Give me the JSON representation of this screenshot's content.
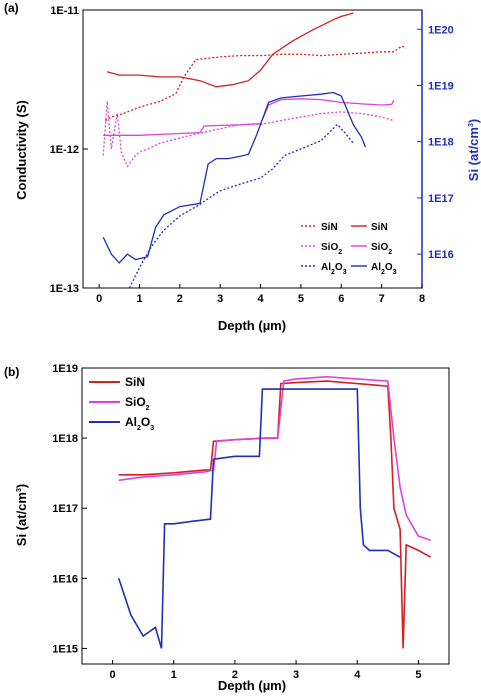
{
  "chart_data": [
    {
      "panel_label": "(a)",
      "type": "line",
      "xlabel": "Depth (µm)",
      "ylabel": "Conductivity (S)",
      "ylabel_right": "Si (at/cm³)",
      "xlim": [
        -0.4,
        8
      ],
      "ylim": [
        1e-13,
        1e-11
      ],
      "yscale": "log",
      "ylim_right": [
        2500000000000000.0,
        2.2e+20
      ],
      "yscale_right": "log",
      "x_ticks": [
        "0",
        "1",
        "2",
        "3",
        "4",
        "5",
        "6",
        "7",
        "8"
      ],
      "y_ticks": [
        "1E-13",
        "1E-12",
        "1E-11"
      ],
      "y_ticks_right": [
        "1E16",
        "1E17",
        "1E18",
        "1E19",
        "1E20"
      ],
      "legend_position": "bottom-right",
      "legend": [
        {
          "text": "SiN",
          "style": "dotted",
          "color": "#d42020"
        },
        {
          "text": "SiN",
          "style": "solid",
          "color": "#d42020"
        },
        {
          "text": "SiO₂",
          "style": "dotted",
          "color": "#e040e0"
        },
        {
          "text": "SiO₂",
          "style": "solid",
          "color": "#e040e0"
        },
        {
          "text": "Al₂O₃",
          "style": "dotted",
          "color": "#1f2fb8"
        },
        {
          "text": "Al₂O₃",
          "style": "solid",
          "color": "#1f2fb8"
        }
      ],
      "series": [
        {
          "style": "dotted",
          "color": "#d42020",
          "axis": "left",
          "x": [
            0.15,
            0.3,
            0.6,
            1.0,
            1.5,
            1.9,
            2.1,
            2.4,
            3.0,
            3.5,
            4.0,
            4.5,
            5.0,
            5.5,
            6.0,
            6.5,
            7.0,
            7.3,
            7.5,
            7.6
          ],
          "y": [
            1.6e-12,
            1.7e-12,
            1.8e-12,
            2e-12,
            2.2e-12,
            2.5e-12,
            3.3e-12,
            4.4e-12,
            4.6e-12,
            4.7e-12,
            4.7e-12,
            4.8e-12,
            4.8e-12,
            4.7e-12,
            4.8e-12,
            4.9e-12,
            5e-12,
            5e-12,
            5.5e-12,
            5.3e-12
          ]
        },
        {
          "style": "solid",
          "color": "#d42020",
          "axis": "left",
          "x": [
            0.2,
            0.5,
            1.0,
            1.5,
            2.0,
            2.5,
            2.9,
            3.3,
            3.7,
            4.0,
            4.3,
            4.8,
            5.3,
            5.8,
            6.0,
            6.3
          ],
          "y": [
            3.6e-12,
            3.4e-12,
            3.4e-12,
            3.3e-12,
            3.3e-12,
            3.1e-12,
            2.8e-12,
            2.9e-12,
            3.1e-12,
            3.7e-12,
            4.8e-12,
            6e-12,
            7.2e-12,
            8.5e-12,
            9e-12,
            9.5e-12
          ]
        },
        {
          "style": "dotted",
          "color": "#e040e0",
          "axis": "left",
          "x": [
            0.1,
            0.2,
            0.3,
            0.45,
            0.55,
            0.7,
            0.9,
            1.0,
            1.2,
            1.5,
            2.0,
            2.5,
            3.0,
            3.5,
            4.0,
            4.5,
            5.0,
            5.5,
            6.0,
            6.5,
            7.0,
            7.3
          ],
          "y": [
            9e-13,
            2.2e-12,
            1e-12,
            1.8e-12,
            9.5e-13,
            7.5e-13,
            9e-13,
            9.5e-13,
            1e-12,
            1.1e-12,
            1.2e-12,
            1.3e-12,
            1.4e-12,
            1.5e-12,
            1.5e-12,
            1.6e-12,
            1.7e-12,
            1.8e-12,
            1.85e-12,
            1.8e-12,
            1.7e-12,
            1.6e-12
          ]
        },
        {
          "style": "solid",
          "color": "#e040e0",
          "axis": "right",
          "x": [
            0.1,
            0.5,
            1.0,
            1.5,
            2.0,
            2.5,
            2.6,
            3.0,
            3.5,
            4.0,
            4.2,
            4.5,
            5.0,
            5.5,
            6.0,
            6.5,
            7.0,
            7.25,
            7.3
          ],
          "y": [
            1.3e+18,
            1.3e+18,
            1.3e+18,
            1.35e+18,
            1.4e+18,
            1.45e+18,
            1.9e+18,
            1.95e+18,
            2e+18,
            2.1e+18,
            4.5e+18,
            5.6e+18,
            5.8e+18,
            5.6e+18,
            5e+18,
            4.7e+18,
            4.5e+18,
            4.6e+18,
            5.5e+18
          ]
        },
        {
          "style": "dotted",
          "color": "#1f2fb8",
          "axis": "left",
          "x": [
            0.75,
            1.0,
            1.3,
            1.6,
            2.0,
            2.5,
            2.8,
            3.0,
            3.5,
            4.0,
            4.3,
            4.6,
            5.0,
            5.5,
            5.9,
            6.1,
            6.3
          ],
          "y": [
            1e-13,
            1.4e-13,
            2e-13,
            2.6e-13,
            3.3e-13,
            4e-13,
            4.6e-13,
            5e-13,
            5.6e-13,
            6.2e-13,
            7.2e-13,
            9e-13,
            1e-12,
            1.15e-12,
            1.5e-12,
            1.3e-12,
            1.1e-12
          ]
        },
        {
          "style": "solid",
          "color": "#1f2fb8",
          "axis": "right",
          "x": [
            0.1,
            0.3,
            0.5,
            0.7,
            0.9,
            1.2,
            1.4,
            1.6,
            2.0,
            2.5,
            2.7,
            2.9,
            3.2,
            3.5,
            3.7,
            3.9,
            4.2,
            4.5,
            5.0,
            5.5,
            5.8,
            6.0,
            6.3,
            6.5,
            6.6
          ],
          "y": [
            2e+16,
            1e+16,
            7000000000000000.0,
            1e+16,
            8000000000000000.0,
            9000000000000000.0,
            3e+16,
            5e+16,
            7e+16,
            8e+16,
            4e+17,
            5e+17,
            5e+17,
            5.5e+17,
            6e+17,
            1.3e+18,
            5e+18,
            6e+18,
            6.5e+18,
            7e+18,
            7.5e+18,
            6.5e+18,
            2e+18,
            1.2e+18,
            8e+17
          ]
        }
      ]
    },
    {
      "panel_label": "(b)",
      "type": "line",
      "xlabel": "Depth (µm)",
      "ylabel": "Si (at/cm³)",
      "xlim": [
        -0.5,
        5.5
      ],
      "ylim": [
        600000000000000.0,
        1e+19
      ],
      "yscale": "log",
      "x_ticks": [
        "0",
        "1",
        "2",
        "3",
        "4",
        "5"
      ],
      "y_ticks": [
        "1E15",
        "1E16",
        "1E17",
        "1E18",
        "1E19"
      ],
      "legend_position": "top-left",
      "legend": [
        {
          "text": "SiN",
          "color": "#d42020"
        },
        {
          "text": "SiO₂",
          "color": "#e040e0"
        },
        {
          "text": "Al₂O₃",
          "color": "#1f2fb8"
        }
      ],
      "series": [
        {
          "name": "SiN",
          "color": "#d42020",
          "x": [
            0.1,
            0.5,
            1.0,
            1.5,
            1.6,
            1.65,
            2.0,
            2.5,
            2.7,
            2.75,
            3.0,
            3.5,
            4.0,
            4.5,
            4.55,
            4.6,
            4.7,
            4.75,
            4.8,
            5.0,
            5.2
          ],
          "y": [
            3e+17,
            3e+17,
            3.2e+17,
            3.5e+17,
            3.5e+17,
            9e+17,
            9.5e+17,
            1e+18,
            1e+18,
            6e+18,
            6.2e+18,
            6.5e+18,
            6e+18,
            5.5e+18,
            1e+18,
            1e+17,
            5e+16,
            1000000000000000.0,
            3e+16,
            2.5e+16,
            2e+16
          ]
        },
        {
          "name": "SiO₂",
          "color": "#e040e0",
          "x": [
            0.1,
            0.5,
            1.0,
            1.5,
            1.65,
            1.7,
            2.0,
            2.5,
            2.7,
            2.8,
            3.0,
            3.5,
            4.0,
            4.5,
            4.6,
            4.7,
            4.8,
            5.0,
            5.2
          ],
          "y": [
            2.5e+17,
            2.8e+17,
            3e+17,
            3.3e+17,
            3.5e+17,
            9e+17,
            9.5e+17,
            1e+18,
            1e+18,
            6.5e+18,
            7e+18,
            7.5e+18,
            7e+18,
            6.5e+18,
            1e+18,
            2e+17,
            8e+16,
            4e+16,
            3.5e+16
          ]
        },
        {
          "name": "Al₂O₃",
          "color": "#1f2fb8",
          "x": [
            0.1,
            0.3,
            0.5,
            0.7,
            0.8,
            0.85,
            1.0,
            1.3,
            1.6,
            1.65,
            2.0,
            2.4,
            2.45,
            3.0,
            3.5,
            4.0,
            4.05,
            4.1,
            4.2,
            4.5,
            4.7
          ],
          "y": [
            1e+16,
            3000000000000000.0,
            1500000000000000.0,
            2000000000000000.0,
            1000000000000000.0,
            6e+16,
            6e+16,
            6.5e+16,
            7e+16,
            5e+17,
            5.5e+17,
            5.5e+17,
            5e+18,
            5e+18,
            5e+18,
            5e+18,
            1e+17,
            3e+16,
            2.5e+16,
            2.5e+16,
            2e+16
          ]
        }
      ]
    }
  ]
}
